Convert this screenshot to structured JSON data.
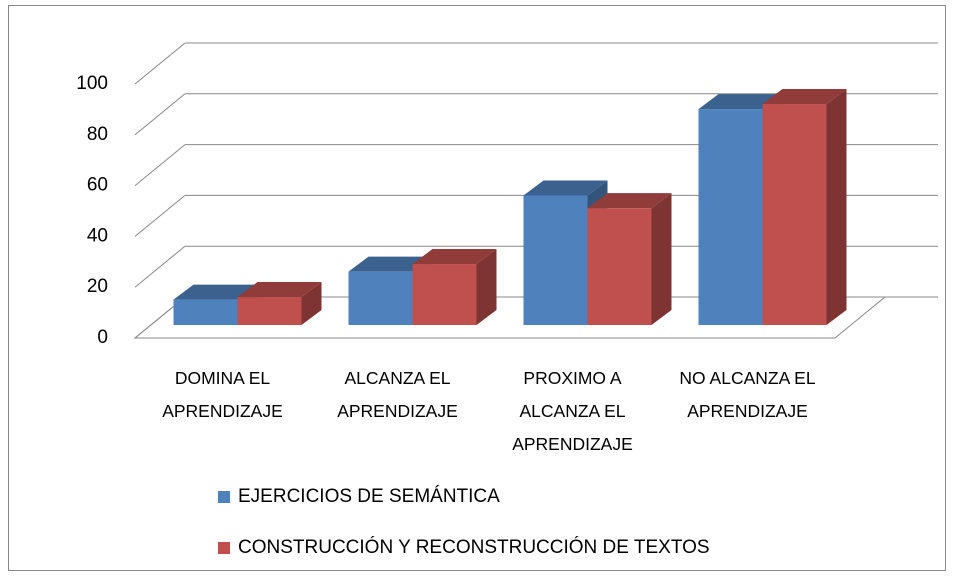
{
  "chart_data": {
    "type": "bar3d",
    "categories": [
      "DOMINA EL APRENDIZAJE",
      "ALCANZA EL APRENDIZAJE",
      "PROXIMO A ALCANZA EL APRENDIZAJE",
      "NO ALCANZA EL APRENDIZAJE"
    ],
    "series": [
      {
        "name": "EJERCICIOS DE SEMÁNTICA",
        "color": "#4f81bd",
        "values": [
          10,
          21,
          51,
          85
        ]
      },
      {
        "name": "CONSTRUCCIÓN Y RECONSTRUCCIÓN DE TEXTOS",
        "color": "#c0504d",
        "values": [
          11,
          24,
          46,
          87
        ]
      }
    ],
    "ylim": [
      0,
      100
    ],
    "yticks": [
      0,
      20,
      40,
      60,
      80,
      100
    ],
    "grid": true,
    "legend": "bottom"
  }
}
